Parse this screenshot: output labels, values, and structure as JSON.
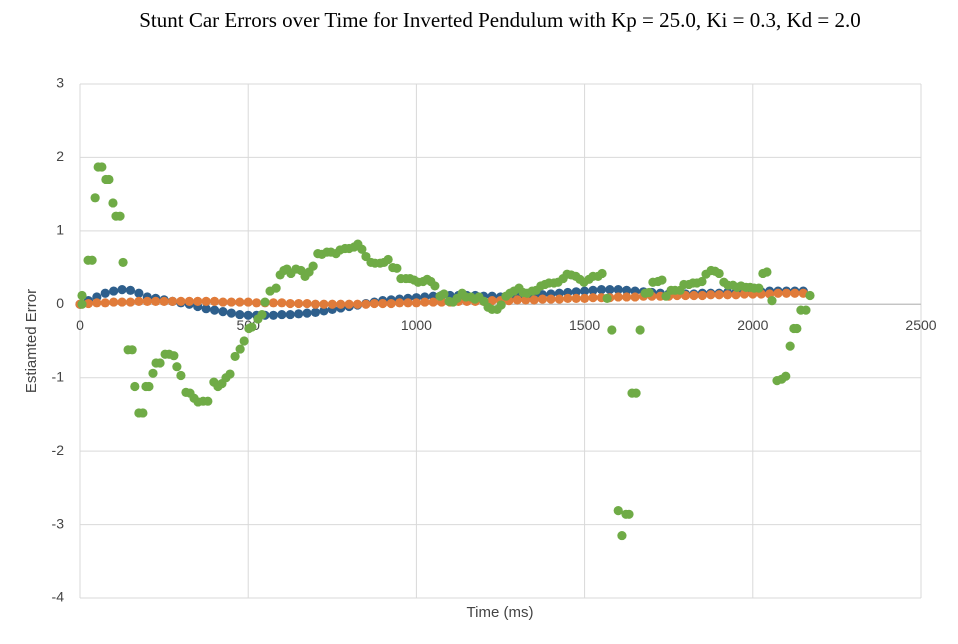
{
  "chart_data": {
    "type": "scatter",
    "title": "Stunt Car Errors over Time for Inverted Pendulum with Kp = 25.0, Ki = 0.3, Kd = 2.0",
    "x_label": "Time (ms)",
    "y_label": "Estiamted Error",
    "xlim": [
      0,
      2500
    ],
    "xticks": [
      0,
      500,
      1000,
      1500,
      2000,
      2500
    ],
    "ylim": [
      -4,
      3
    ],
    "yticks": [
      -4,
      -3,
      -2,
      -1,
      0,
      1,
      2,
      3
    ],
    "grid": true,
    "series": [
      {
        "color": "#2e5f8c",
        "x": [
          0,
          25,
          50,
          75,
          100,
          125,
          150,
          175,
          200,
          225,
          250,
          275,
          300,
          325,
          350,
          375,
          400,
          425,
          450,
          475,
          500,
          525,
          550,
          575,
          600,
          625,
          650,
          675,
          700,
          725,
          750,
          775,
          800,
          825,
          850,
          875,
          900,
          925,
          950,
          975,
          1000,
          1025,
          1050,
          1075,
          1100,
          1125,
          1150,
          1175,
          1200,
          1225,
          1250,
          1275,
          1300,
          1325,
          1350,
          1375,
          1400,
          1425,
          1450,
          1475,
          1500,
          1525,
          1550,
          1575,
          1600,
          1625,
          1650,
          1675,
          1700,
          1725,
          1750,
          1775,
          1800,
          1825,
          1850,
          1875,
          1900,
          1925,
          1950,
          1975,
          2000,
          2025,
          2050,
          2075,
          2100,
          2125,
          2150
        ],
        "values": [
          0,
          0.05,
          0.1,
          0.15,
          0.18,
          0.2,
          0.19,
          0.15,
          0.1,
          0.08,
          0.06,
          0.04,
          0.02,
          0,
          -0.03,
          -0.06,
          -0.08,
          -0.1,
          -0.12,
          -0.14,
          -0.15,
          -0.15,
          -0.15,
          -0.15,
          -0.14,
          -0.14,
          -0.13,
          -0.12,
          -0.11,
          -0.09,
          -0.07,
          -0.05,
          -0.03,
          -0.01,
          0.01,
          0.03,
          0.05,
          0.06,
          0.07,
          0.08,
          0.09,
          0.1,
          0.11,
          0.12,
          0.12,
          0.12,
          0.12,
          0.12,
          0.11,
          0.11,
          0.1,
          0.1,
          0.1,
          0.11,
          0.12,
          0.13,
          0.14,
          0.15,
          0.16,
          0.17,
          0.18,
          0.19,
          0.2,
          0.2,
          0.2,
          0.19,
          0.18,
          0.17,
          0.16,
          0.15,
          0.14,
          0.14,
          0.14,
          0.14,
          0.15,
          0.15,
          0.15,
          0.16,
          0.16,
          0.17,
          0.17,
          0.17,
          0.18,
          0.18,
          0.18,
          0.18,
          0.18
        ]
      },
      {
        "color": "#e07b3a",
        "x": [
          0,
          25,
          50,
          75,
          100,
          125,
          150,
          175,
          200,
          225,
          250,
          275,
          300,
          325,
          350,
          375,
          400,
          425,
          450,
          475,
          500,
          525,
          550,
          575,
          600,
          625,
          650,
          675,
          700,
          725,
          750,
          775,
          800,
          825,
          850,
          875,
          900,
          925,
          950,
          975,
          1000,
          1025,
          1050,
          1075,
          1100,
          1125,
          1150,
          1175,
          1200,
          1225,
          1250,
          1275,
          1300,
          1325,
          1350,
          1375,
          1400,
          1425,
          1450,
          1475,
          1500,
          1525,
          1550,
          1575,
          1600,
          1625,
          1650,
          1675,
          1700,
          1725,
          1750,
          1775,
          1800,
          1825,
          1850,
          1875,
          1900,
          1925,
          1950,
          1975,
          2000,
          2025,
          2050,
          2075,
          2100,
          2125,
          2150
        ],
        "values": [
          0,
          0.01,
          0.02,
          0.02,
          0.03,
          0.03,
          0.03,
          0.04,
          0.04,
          0.04,
          0.04,
          0.04,
          0.04,
          0.04,
          0.04,
          0.04,
          0.04,
          0.03,
          0.03,
          0.03,
          0.03,
          0.02,
          0.02,
          0.02,
          0.02,
          0.01,
          0.01,
          0.01,
          0,
          0,
          0,
          0,
          0,
          0,
          0,
          0.01,
          0.01,
          0.01,
          0.02,
          0.02,
          0.02,
          0.03,
          0.03,
          0.03,
          0.03,
          0.04,
          0.04,
          0.04,
          0.04,
          0.05,
          0.05,
          0.05,
          0.06,
          0.06,
          0.06,
          0.07,
          0.07,
          0.07,
          0.08,
          0.08,
          0.08,
          0.09,
          0.09,
          0.09,
          0.1,
          0.1,
          0.1,
          0.11,
          0.11,
          0.11,
          0.11,
          0.12,
          0.12,
          0.12,
          0.12,
          0.13,
          0.13,
          0.13,
          0.13,
          0.14,
          0.14,
          0.14,
          0.14,
          0.15,
          0.15,
          0.15,
          0.15
        ]
      },
      {
        "color": "#6fab46",
        "x": [
          6,
          6,
          24,
          36,
          45,
          54,
          65,
          77,
          86,
          98,
          107,
          119,
          128,
          143,
          155,
          163,
          175,
          187,
          196,
          205,
          217,
          226,
          238,
          253,
          265,
          279,
          288,
          300,
          315,
          327,
          339,
          351,
          366,
          380,
          398,
          410,
          422,
          434,
          446,
          461,
          476,
          488,
          502,
          511,
          529,
          541,
          550,
          565,
          583,
          595,
          606,
          615,
          627,
          642,
          657,
          669,
          681,
          693,
          707,
          719,
          734,
          746,
          761,
          773,
          788,
          800,
          815,
          826,
          838,
          850,
          865,
          877,
          892,
          904,
          916,
          930,
          942,
          954,
          969,
          981,
          993,
          1005,
          1020,
          1032,
          1043,
          1055,
          1070,
          1082,
          1097,
          1109,
          1121,
          1136,
          1147,
          1162,
          1174,
          1186,
          1201,
          1213,
          1225,
          1240,
          1252,
          1266,
          1278,
          1290,
          1305,
          1317,
          1329,
          1344,
          1356,
          1370,
          1382,
          1394,
          1409,
          1421,
          1436,
          1448,
          1460,
          1474,
          1486,
          1498,
          1513,
          1525,
          1540,
          1552,
          1567,
          1581,
          1600,
          1611,
          1623,
          1632,
          1641,
          1653,
          1665,
          1680,
          1692,
          1703,
          1718,
          1730,
          1742,
          1757,
          1769,
          1784,
          1795,
          1810,
          1822,
          1834,
          1849,
          1861,
          1876,
          1888,
          1900,
          1914,
          1926,
          1941,
          1953,
          1965,
          1980,
          1992,
          2004,
          2018,
          2030,
          2042,
          2057,
          2072,
          2086,
          2098,
          2111,
          2122,
          2131,
          2143,
          2158,
          2170
        ],
        "values": [
          0,
          0.12,
          0.6,
          0.6,
          1.45,
          1.87,
          1.87,
          1.7,
          1.7,
          1.38,
          1.2,
          1.2,
          0.57,
          -0.62,
          -0.62,
          -1.12,
          -1.48,
          -1.48,
          -1.12,
          -1.12,
          -0.94,
          -0.8,
          -0.8,
          -0.68,
          -0.68,
          -0.7,
          -0.85,
          -0.97,
          -1.2,
          -1.21,
          -1.28,
          -1.33,
          -1.32,
          -1.32,
          -1.06,
          -1.12,
          -1.08,
          -1.0,
          -0.95,
          -0.71,
          -0.61,
          -0.5,
          -0.33,
          -0.31,
          -0.2,
          -0.14,
          0.03,
          0.18,
          0.22,
          0.4,
          0.46,
          0.48,
          0.42,
          0.48,
          0.46,
          0.38,
          0.44,
          0.52,
          0.69,
          0.68,
          0.71,
          0.71,
          0.69,
          0.74,
          0.76,
          0.76,
          0.78,
          0.82,
          0.75,
          0.65,
          0.57,
          0.56,
          0.56,
          0.57,
          0.61,
          0.5,
          0.49,
          0.35,
          0.35,
          0.35,
          0.33,
          0.3,
          0.31,
          0.34,
          0.31,
          0.25,
          0.11,
          0.14,
          0.04,
          0.03,
          0.08,
          0.15,
          0.1,
          0.1,
          0.07,
          0.1,
          0.04,
          -0.04,
          -0.07,
          -0.07,
          -0.01,
          0.11,
          0.15,
          0.18,
          0.22,
          0.16,
          0.15,
          0.18,
          0.19,
          0.25,
          0.27,
          0.29,
          0.29,
          0.3,
          0.35,
          0.41,
          0.4,
          0.38,
          0.34,
          0.3,
          0.34,
          0.38,
          0.38,
          0.42,
          0.08,
          -0.35,
          -2.81,
          -3.15,
          -2.86,
          -2.86,
          -1.21,
          -1.21,
          -0.35,
          0.15,
          0.16,
          0.3,
          0.31,
          0.33,
          0.11,
          0.19,
          0.19,
          0.19,
          0.27,
          0.27,
          0.29,
          0.29,
          0.31,
          0.41,
          0.46,
          0.45,
          0.42,
          0.3,
          0.26,
          0.26,
          0.23,
          0.25,
          0.23,
          0.23,
          0.22,
          0.22,
          0.42,
          0.44,
          0.05,
          -1.04,
          -1.02,
          -0.98,
          -0.57,
          -0.33,
          -0.33,
          -0.08,
          -0.08,
          0.12
        ]
      }
    ]
  }
}
